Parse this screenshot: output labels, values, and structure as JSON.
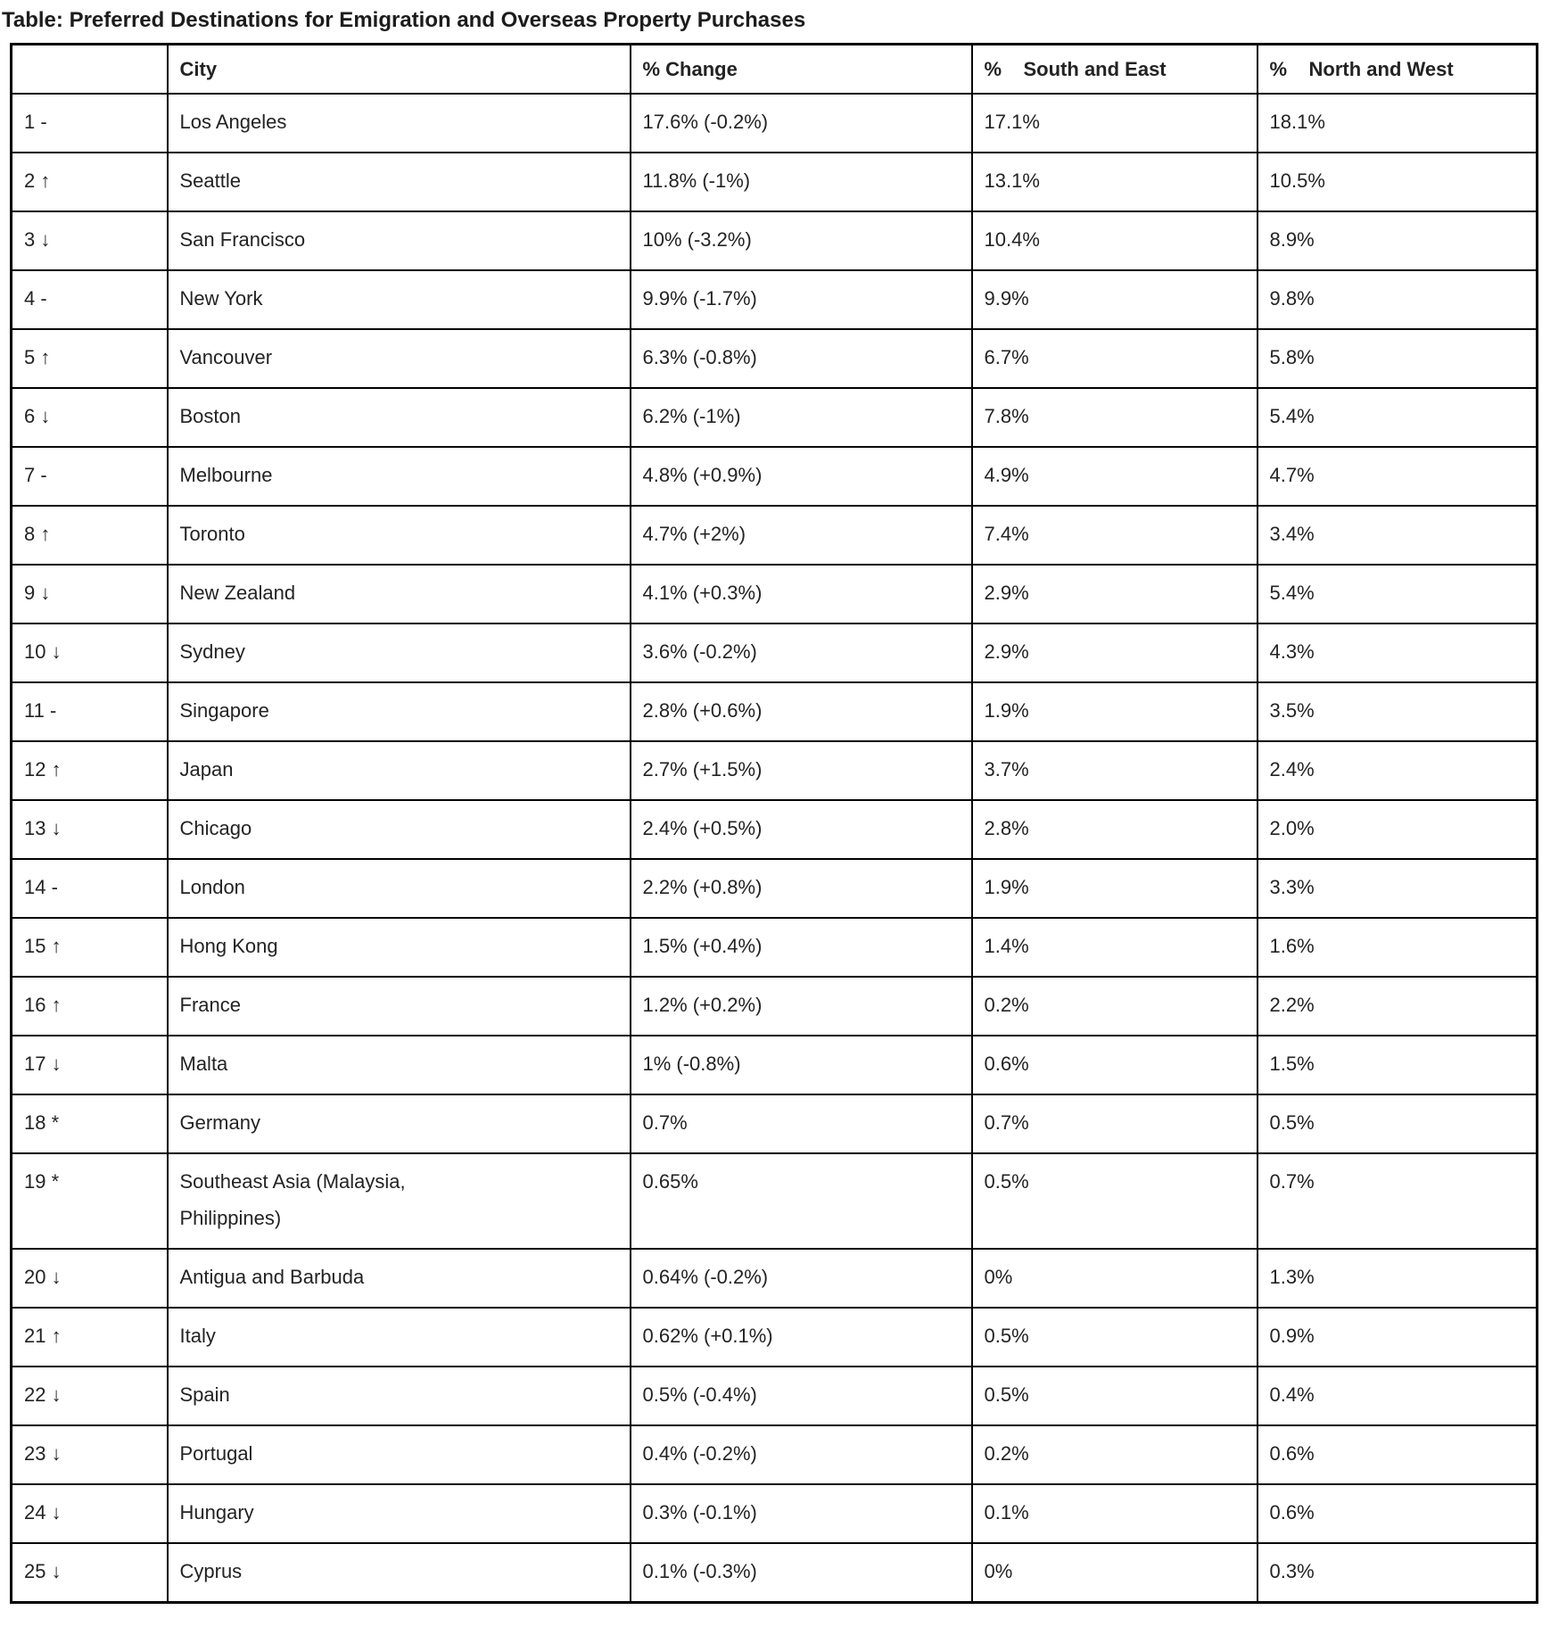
{
  "page": {
    "title": "Table: Preferred Destinations for Emigration and Overseas Property Purchases"
  },
  "table": {
    "columns": [
      "",
      "City",
      "% Change",
      "%    South and East",
      "%    North and West"
    ],
    "rows": [
      {
        "rank": "1 -",
        "city": "Los Angeles",
        "change": "17.6% (-0.2%)",
        "south_east": "17.1%",
        "north_west": "18.1%"
      },
      {
        "rank": "2 ↑",
        "city": "Seattle",
        "change": "11.8% (-1%)",
        "south_east": "13.1%",
        "north_west": "10.5%"
      },
      {
        "rank": "3 ↓",
        "city": "San Francisco",
        "change": "10% (-3.2%)",
        "south_east": "10.4%",
        "north_west": "8.9%"
      },
      {
        "rank": "4 -",
        "city": "New York",
        "change": "9.9% (-1.7%)",
        "south_east": "9.9%",
        "north_west": "9.8%"
      },
      {
        "rank": "5 ↑",
        "city": "Vancouver",
        "change": "6.3% (-0.8%)",
        "south_east": "6.7%",
        "north_west": "5.8%"
      },
      {
        "rank": "6 ↓",
        "city": "Boston",
        "change": "6.2% (-1%)",
        "south_east": "7.8%",
        "north_west": "5.4%"
      },
      {
        "rank": "7 -",
        "city": "Melbourne",
        "change": "4.8% (+0.9%)",
        "south_east": "4.9%",
        "north_west": "4.7%"
      },
      {
        "rank": "8 ↑",
        "city": "Toronto",
        "change": "4.7% (+2%)",
        "south_east": "7.4%",
        "north_west": "3.4%"
      },
      {
        "rank": "9 ↓",
        "city": "New Zealand",
        "change": "4.1% (+0.3%)",
        "south_east": "2.9%",
        "north_west": "5.4%"
      },
      {
        "rank": "10 ↓",
        "city": "Sydney",
        "change": "3.6% (-0.2%)",
        "south_east": "2.9%",
        "north_west": "4.3%"
      },
      {
        "rank": "11 -",
        "city": "Singapore",
        "change": "2.8% (+0.6%)",
        "south_east": "1.9%",
        "north_west": "3.5%"
      },
      {
        "rank": "12 ↑",
        "city": "Japan",
        "change": "2.7% (+1.5%)",
        "south_east": "3.7%",
        "north_west": "2.4%"
      },
      {
        "rank": "13 ↓",
        "city": "Chicago",
        "change": "2.4% (+0.5%)",
        "south_east": "2.8%",
        "north_west": "2.0%"
      },
      {
        "rank": "14 -",
        "city": "London",
        "change": "2.2% (+0.8%)",
        "south_east": "1.9%",
        "north_west": "3.3%"
      },
      {
        "rank": "15 ↑",
        "city": "Hong Kong",
        "change": "1.5% (+0.4%)",
        "south_east": "1.4%",
        "north_west": "1.6%"
      },
      {
        "rank": "16 ↑",
        "city": "France",
        "change": "1.2% (+0.2%)",
        "south_east": "0.2%",
        "north_west": "2.2%"
      },
      {
        "rank": "17 ↓",
        "city": "Malta",
        "change": "1% (-0.8%)",
        "south_east": "0.6%",
        "north_west": "1.5%"
      },
      {
        "rank": "18 *",
        "city": "Germany",
        "change": "0.7%",
        "south_east": "0.7%",
        "north_west": "0.5%"
      },
      {
        "rank": "19 *",
        "city": "Southeast Asia (Malaysia,\nPhilippines)",
        "change": "0.65%",
        "south_east": "0.5%",
        "north_west": "0.7%"
      },
      {
        "rank": "20 ↓",
        "city": "Antigua and Barbuda",
        "change": "0.64% (-0.2%)",
        "south_east": "0%",
        "north_west": "1.3%"
      },
      {
        "rank": "21 ↑",
        "city": "Italy",
        "change": "0.62% (+0.1%)",
        "south_east": "0.5%",
        "north_west": "0.9%"
      },
      {
        "rank": "22 ↓",
        "city": "Spain",
        "change": "0.5% (-0.4%)",
        "south_east": "0.5%",
        "north_west": "0.4%"
      },
      {
        "rank": "23 ↓",
        "city": "Portugal",
        "change": "0.4% (-0.2%)",
        "south_east": "0.2%",
        "north_west": "0.6%"
      },
      {
        "rank": "24 ↓",
        "city": "Hungary",
        "change": "0.3% (-0.1%)",
        "south_east": "0.1%",
        "north_west": "0.6%"
      },
      {
        "rank": "25 ↓",
        "city": "Cyprus",
        "change": "0.1% (-0.3%)",
        "south_east": "0%",
        "north_west": "0.3%"
      }
    ]
  }
}
